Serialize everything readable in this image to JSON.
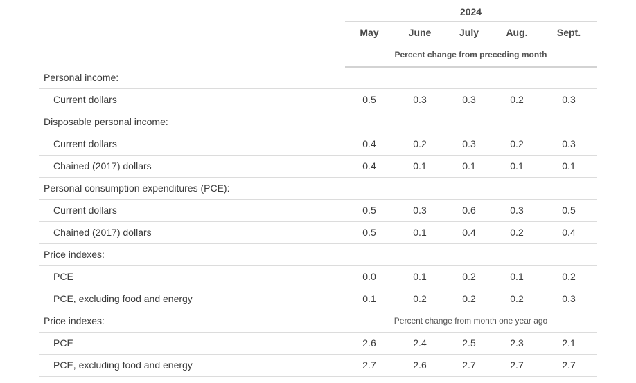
{
  "header": {
    "year": "2024",
    "months": [
      "May",
      "June",
      "July",
      "Aug.",
      "Sept."
    ],
    "unit_label": "Percent change from preceding month"
  },
  "rows": [
    {
      "kind": "section",
      "label": "Personal income:"
    },
    {
      "kind": "item",
      "label": "Current dollars",
      "values": [
        "0.5",
        "0.3",
        "0.3",
        "0.2",
        "0.3"
      ]
    },
    {
      "kind": "section",
      "label": "Disposable personal income:"
    },
    {
      "kind": "item",
      "label": "Current dollars",
      "values": [
        "0.4",
        "0.2",
        "0.3",
        "0.2",
        "0.3"
      ]
    },
    {
      "kind": "item",
      "label": "Chained (2017) dollars",
      "values": [
        "0.4",
        "0.1",
        "0.1",
        "0.1",
        "0.1"
      ]
    },
    {
      "kind": "section",
      "label": "Personal consumption expenditures (PCE):"
    },
    {
      "kind": "item",
      "label": "Current dollars",
      "values": [
        "0.5",
        "0.3",
        "0.6",
        "0.3",
        "0.5"
      ]
    },
    {
      "kind": "item",
      "label": "Chained (2017) dollars",
      "values": [
        "0.5",
        "0.1",
        "0.4",
        "0.2",
        "0.4"
      ]
    },
    {
      "kind": "section",
      "label": "Price indexes:"
    },
    {
      "kind": "item",
      "label": "PCE",
      "values": [
        "0.0",
        "0.1",
        "0.2",
        "0.1",
        "0.2"
      ]
    },
    {
      "kind": "item",
      "label": "PCE, excluding food and energy",
      "values": [
        "0.1",
        "0.2",
        "0.2",
        "0.2",
        "0.3"
      ]
    },
    {
      "kind": "section",
      "label": "Price indexes:",
      "subunit": "Percent change from month one year ago"
    },
    {
      "kind": "item",
      "label": "PCE",
      "values": [
        "2.6",
        "2.4",
        "2.5",
        "2.3",
        "2.1"
      ]
    },
    {
      "kind": "item",
      "label": "PCE, excluding food and energy",
      "values": [
        "2.7",
        "2.6",
        "2.7",
        "2.7",
        "2.7"
      ]
    }
  ]
}
